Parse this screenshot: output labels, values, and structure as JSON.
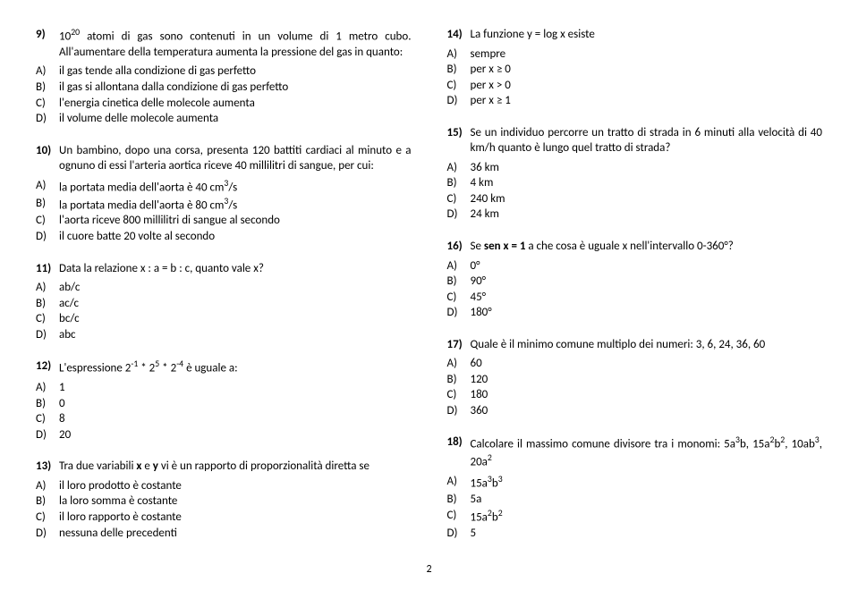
{
  "pageNumber": "2",
  "left": [
    {
      "num": "9)",
      "text": "10<sup>20</sup> atomi di gas sono contenuti in un volume di 1 metro cubo. All'aumentare della temperatura aumenta la pressione del gas in quanto:",
      "opts": [
        {
          "l": "A)",
          "t": "il gas tende alla condizione di gas perfetto"
        },
        {
          "l": "B)",
          "t": "il gas si allontana dalla condizione di gas perfetto"
        },
        {
          "l": "C)",
          "t": "l'energia cinetica delle molecole aumenta"
        },
        {
          "l": "D)",
          "t": "il volume delle molecole aumenta"
        }
      ]
    },
    {
      "num": "10)",
      "text": "Un bambino, dopo una corsa, presenta 120 battiti cardiaci al minuto e a ognuno di essi l'arteria aortica riceve 40 millilitri di sangue, per cui:",
      "opts": [
        {
          "l": "A)",
          "t": "la portata media dell'aorta è 40 cm<sup>3</sup>/s"
        },
        {
          "l": "B)",
          "t": "la portata media dell'aorta è 80 cm<sup>3</sup>/s"
        },
        {
          "l": "C)",
          "t": "l'aorta riceve 800 millilitri di sangue al secondo"
        },
        {
          "l": "D)",
          "t": "il cuore batte 20 volte al secondo"
        }
      ]
    },
    {
      "num": "11)",
      "text": "Data la relazione x : a = b : c, quanto vale x?",
      "opts": [
        {
          "l": "A)",
          "t": "ab/c"
        },
        {
          "l": "B)",
          "t": "ac/c"
        },
        {
          "l": "C)",
          "t": "bc/c"
        },
        {
          "l": "D)",
          "t": "abc"
        }
      ]
    },
    {
      "num": "12)",
      "text": "L'espressione 2<sup>-1</sup> * 2<sup>5</sup> * 2<sup>-4</sup> è uguale a:",
      "opts": [
        {
          "l": "A)",
          "t": "1"
        },
        {
          "l": "B)",
          "t": "0"
        },
        {
          "l": "C)",
          "t": "8"
        },
        {
          "l": "D)",
          "t": "20"
        }
      ]
    },
    {
      "num": "13)",
      "text": "Tra due variabili <b>x</b> e <b>y</b> vi è un rapporto di proporzionalità diretta se",
      "opts": [
        {
          "l": "A)",
          "t": "il loro prodotto è costante"
        },
        {
          "l": "B)",
          "t": "la loro somma è costante"
        },
        {
          "l": "C)",
          "t": "il loro rapporto è costante"
        },
        {
          "l": "D)",
          "t": "nessuna delle precedenti"
        }
      ]
    }
  ],
  "right": [
    {
      "num": "14)",
      "text": "La funzione y = log x esiste",
      "opts": [
        {
          "l": "A)",
          "t": "sempre"
        },
        {
          "l": "B)",
          "t": "per x ≥ 0"
        },
        {
          "l": "C)",
          "t": "per x > 0"
        },
        {
          "l": "D)",
          "t": "per x ≥ 1"
        }
      ]
    },
    {
      "num": "15)",
      "text": "Se un individuo percorre un tratto di strada in 6 minuti alla velocità di 40 km/h quanto è lungo quel tratto di strada?",
      "opts": [
        {
          "l": "A)",
          "t": "36 km"
        },
        {
          "l": "B)",
          "t": "4 km"
        },
        {
          "l": "C)",
          "t": "240 km"
        },
        {
          "l": "D)",
          "t": "24 km"
        }
      ]
    },
    {
      "num": "16)",
      "text": "Se  <b>sen x = 1</b>  a che cosa è uguale x nell'intervallo 0-360°?",
      "opts": [
        {
          "l": "A)",
          "t": "0°"
        },
        {
          "l": "B)",
          "t": "90°"
        },
        {
          "l": "C)",
          "t": "45°"
        },
        {
          "l": "D)",
          "t": "180°"
        }
      ]
    },
    {
      "num": "17)",
      "text": "Quale è il minimo comune multiplo dei numeri: 3, 6, 24, 36, 60",
      "opts": [
        {
          "l": "A)",
          "t": "60"
        },
        {
          "l": "B)",
          "t": "120"
        },
        {
          "l": "C)",
          "t": "180"
        },
        {
          "l": "D)",
          "t": "360"
        }
      ]
    },
    {
      "num": "18)",
      "text": "Calcolare il massimo comune divisore tra i monomi: 5a<sup>3</sup>b, 15a<sup>2</sup>b<sup>2</sup>, 10ab<sup>3</sup>, 20a<sup>2</sup>",
      "opts": [
        {
          "l": "A)",
          "t": "15a<sup>3</sup>b<sup>3</sup>"
        },
        {
          "l": "B)",
          "t": "5a"
        },
        {
          "l": "C)",
          "t": "15a<sup>2</sup>b<sup>2</sup>"
        },
        {
          "l": "D)",
          "t": "5"
        }
      ]
    }
  ]
}
